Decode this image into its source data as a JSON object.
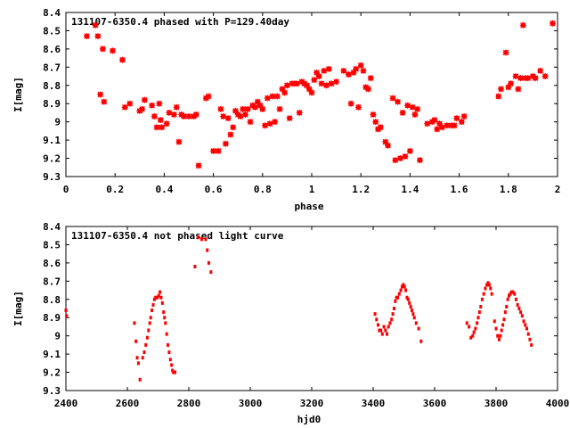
{
  "marker_color": "#ff0000",
  "chart_data": [
    {
      "type": "scatter",
      "title": "131107-6350.4 phased with P=129.40day",
      "xlabel": "phase",
      "ylabel": "I[mag]",
      "xlim": [
        0,
        2
      ],
      "ylim": [
        8.4,
        9.3
      ],
      "y_inverted": true,
      "grid": false,
      "marker": "star",
      "xticks": [
        "0",
        "0.2",
        "0.4",
        "0.6",
        "0.8",
        "1",
        "1.2",
        "1.4",
        "1.6",
        "1.8",
        "2"
      ],
      "yticks": [
        "8.4",
        "8.5",
        "8.6",
        "8.7",
        "8.8",
        "8.9",
        "9",
        "9.1",
        "9.2",
        "9.3"
      ],
      "points": [
        [
          0.085,
          8.53
        ],
        [
          0.12,
          8.47
        ],
        [
          0.13,
          8.53
        ],
        [
          0.14,
          8.85
        ],
        [
          0.15,
          8.6
        ],
        [
          0.155,
          8.89
        ],
        [
          0.19,
          8.61
        ],
        [
          0.23,
          8.66
        ],
        [
          0.24,
          8.92
        ],
        [
          0.26,
          8.9
        ],
        [
          0.3,
          8.94
        ],
        [
          0.31,
          8.93
        ],
        [
          0.32,
          8.88
        ],
        [
          0.35,
          8.91
        ],
        [
          0.36,
          8.97
        ],
        [
          0.37,
          9.03
        ],
        [
          0.38,
          8.9
        ],
        [
          0.385,
          8.99
        ],
        [
          0.39,
          9.03
        ],
        [
          0.41,
          9.01
        ],
        [
          0.42,
          8.95
        ],
        [
          0.44,
          8.96
        ],
        [
          0.45,
          8.92
        ],
        [
          0.46,
          9.11
        ],
        [
          0.47,
          8.96
        ],
        [
          0.48,
          8.97
        ],
        [
          0.5,
          8.97
        ],
        [
          0.52,
          8.97
        ],
        [
          0.53,
          8.96
        ],
        [
          0.54,
          9.24
        ],
        [
          0.57,
          8.87
        ],
        [
          0.58,
          8.86
        ],
        [
          0.6,
          9.16
        ],
        [
          0.62,
          9.16
        ],
        [
          0.63,
          8.93
        ],
        [
          0.64,
          8.97
        ],
        [
          0.65,
          9.12
        ],
        [
          0.66,
          8.98
        ],
        [
          0.67,
          9.07
        ],
        [
          0.68,
          9.03
        ],
        [
          0.69,
          8.94
        ],
        [
          0.7,
          8.96
        ],
        [
          0.71,
          8.97
        ],
        [
          0.72,
          8.93
        ],
        [
          0.73,
          8.96
        ],
        [
          0.74,
          8.93
        ],
        [
          0.75,
          9.0
        ],
        [
          0.76,
          8.91
        ],
        [
          0.77,
          8.92
        ],
        [
          0.78,
          8.89
        ],
        [
          0.79,
          8.91
        ],
        [
          0.8,
          8.93
        ],
        [
          0.81,
          9.02
        ],
        [
          0.82,
          8.87
        ],
        [
          0.83,
          9.01
        ],
        [
          0.84,
          8.86
        ],
        [
          0.85,
          9.0
        ],
        [
          0.86,
          8.86
        ],
        [
          0.87,
          8.93
        ],
        [
          0.88,
          8.82
        ],
        [
          0.89,
          8.84
        ],
        [
          0.9,
          8.8
        ],
        [
          0.91,
          8.98
        ],
        [
          0.92,
          8.79
        ],
        [
          0.93,
          8.79
        ],
        [
          0.94,
          8.79
        ],
        [
          0.95,
          8.95
        ],
        [
          0.96,
          8.78
        ],
        [
          0.97,
          8.79
        ],
        [
          0.98,
          8.8
        ],
        [
          0.99,
          8.82
        ],
        [
          1.0,
          8.84
        ],
        [
          1.01,
          8.77
        ],
        [
          1.02,
          8.73
        ],
        [
          1.03,
          8.75
        ],
        [
          1.04,
          8.79
        ],
        [
          1.05,
          8.72
        ],
        [
          1.06,
          8.8
        ],
        [
          1.07,
          8.71
        ],
        [
          1.08,
          8.79
        ],
        [
          1.1,
          8.78
        ],
        [
          1.13,
          8.72
        ],
        [
          1.15,
          8.74
        ],
        [
          1.16,
          8.9
        ],
        [
          1.17,
          8.73
        ],
        [
          1.18,
          8.71
        ],
        [
          1.19,
          8.92
        ],
        [
          1.2,
          8.69
        ],
        [
          1.21,
          8.72
        ],
        [
          1.22,
          8.81
        ],
        [
          1.23,
          8.82
        ],
        [
          1.24,
          8.76
        ],
        [
          1.25,
          8.96
        ],
        [
          1.26,
          9.0
        ],
        [
          1.27,
          9.04
        ],
        [
          1.28,
          9.03
        ],
        [
          1.3,
          9.11
        ],
        [
          1.31,
          9.13
        ],
        [
          1.33,
          8.87
        ],
        [
          1.34,
          9.21
        ],
        [
          1.35,
          8.89
        ],
        [
          1.36,
          9.2
        ],
        [
          1.37,
          8.95
        ],
        [
          1.38,
          9.19
        ],
        [
          1.39,
          8.91
        ],
        [
          1.4,
          9.16
        ],
        [
          1.41,
          8.92
        ],
        [
          1.42,
          8.96
        ],
        [
          1.43,
          8.93
        ],
        [
          1.44,
          9.21
        ],
        [
          1.47,
          9.01
        ],
        [
          1.49,
          9.0
        ],
        [
          1.5,
          8.99
        ],
        [
          1.51,
          9.04
        ],
        [
          1.52,
          9.01
        ],
        [
          1.53,
          9.03
        ],
        [
          1.55,
          9.02
        ],
        [
          1.57,
          9.02
        ],
        [
          1.58,
          9.02
        ],
        [
          1.59,
          8.98
        ],
        [
          1.61,
          9.0
        ],
        [
          1.62,
          8.97
        ],
        [
          1.76,
          8.86
        ],
        [
          1.77,
          8.82
        ],
        [
          1.79,
          8.62
        ],
        [
          1.8,
          8.81
        ],
        [
          1.81,
          8.79
        ],
        [
          1.83,
          8.75
        ],
        [
          1.84,
          8.82
        ],
        [
          1.85,
          8.76
        ],
        [
          1.86,
          8.47
        ],
        [
          1.87,
          8.76
        ],
        [
          1.88,
          8.76
        ],
        [
          1.9,
          8.75
        ],
        [
          1.91,
          8.76
        ],
        [
          1.93,
          8.72
        ],
        [
          1.95,
          8.75
        ],
        [
          1.98,
          8.46
        ]
      ]
    },
    {
      "type": "scatter",
      "title": "131107-6350.4 not phased light curve",
      "xlabel": "hjd0",
      "ylabel": "I[mag]",
      "xlim": [
        2400,
        4000
      ],
      "ylim": [
        8.4,
        9.3
      ],
      "y_inverted": true,
      "grid": false,
      "marker": "dot",
      "xticks": [
        "2400",
        "2600",
        "2800",
        "3000",
        "3200",
        "3400",
        "3600",
        "3800",
        "4000"
      ],
      "yticks": [
        "8.4",
        "8.5",
        "8.6",
        "8.7",
        "8.8",
        "8.9",
        "9",
        "9.1",
        "9.2",
        "9.3"
      ],
      "points": [
        [
          2400,
          8.86
        ],
        [
          2402,
          8.89
        ],
        [
          2623,
          8.93
        ],
        [
          2628,
          9.03
        ],
        [
          2632,
          9.12
        ],
        [
          2636,
          9.15
        ],
        [
          2641,
          9.24
        ],
        [
          2650,
          9.12
        ],
        [
          2655,
          9.09
        ],
        [
          2660,
          9.05
        ],
        [
          2665,
          9.01
        ],
        [
          2669,
          8.97
        ],
        [
          2673,
          8.93
        ],
        [
          2676,
          8.9
        ],
        [
          2680,
          8.86
        ],
        [
          2684,
          8.83
        ],
        [
          2688,
          8.8
        ],
        [
          2692,
          8.79
        ],
        [
          2697,
          8.79
        ],
        [
          2702,
          8.78
        ],
        [
          2706,
          8.76
        ],
        [
          2710,
          8.79
        ],
        [
          2714,
          8.82
        ],
        [
          2718,
          8.87
        ],
        [
          2721,
          8.9
        ],
        [
          2724,
          8.93
        ],
        [
          2728,
          8.99
        ],
        [
          2732,
          9.05
        ],
        [
          2736,
          9.09
        ],
        [
          2740,
          9.13
        ],
        [
          2744,
          9.16
        ],
        [
          2747,
          9.19
        ],
        [
          2750,
          9.2
        ],
        [
          2755,
          9.2
        ],
        [
          2820,
          8.62
        ],
        [
          2830,
          8.46
        ],
        [
          2842,
          8.47
        ],
        [
          2855,
          8.47
        ],
        [
          2860,
          8.53
        ],
        [
          2865,
          8.6
        ],
        [
          2872,
          8.65
        ],
        [
          3406,
          8.88
        ],
        [
          3411,
          8.91
        ],
        [
          3416,
          8.94
        ],
        [
          3420,
          8.97
        ],
        [
          3425,
          8.97
        ],
        [
          3430,
          8.99
        ],
        [
          3435,
          8.95
        ],
        [
          3440,
          8.97
        ],
        [
          3445,
          8.99
        ],
        [
          3450,
          8.95
        ],
        [
          3455,
          8.93
        ],
        [
          3460,
          8.91
        ],
        [
          3464,
          8.88
        ],
        [
          3468,
          8.85
        ],
        [
          3472,
          8.81
        ],
        [
          3476,
          8.79
        ],
        [
          3480,
          8.79
        ],
        [
          3485,
          8.77
        ],
        [
          3490,
          8.75
        ],
        [
          3494,
          8.73
        ],
        [
          3498,
          8.72
        ],
        [
          3502,
          8.73
        ],
        [
          3506,
          8.75
        ],
        [
          3510,
          8.79
        ],
        [
          3514,
          8.8
        ],
        [
          3518,
          8.82
        ],
        [
          3522,
          8.84
        ],
        [
          3526,
          8.86
        ],
        [
          3530,
          8.88
        ],
        [
          3534,
          8.9
        ],
        [
          3540,
          8.93
        ],
        [
          3548,
          8.96
        ],
        [
          3556,
          9.03
        ],
        [
          3705,
          8.93
        ],
        [
          3712,
          8.95
        ],
        [
          3718,
          9.01
        ],
        [
          3724,
          9.0
        ],
        [
          3728,
          8.98
        ],
        [
          3733,
          8.96
        ],
        [
          3738,
          8.93
        ],
        [
          3742,
          8.9
        ],
        [
          3746,
          8.87
        ],
        [
          3750,
          8.84
        ],
        [
          3755,
          8.8
        ],
        [
          3760,
          8.77
        ],
        [
          3765,
          8.74
        ],
        [
          3770,
          8.72
        ],
        [
          3774,
          8.71
        ],
        [
          3778,
          8.72
        ],
        [
          3782,
          8.74
        ],
        [
          3786,
          8.77
        ],
        [
          3795,
          8.92
        ],
        [
          3800,
          8.96
        ],
        [
          3805,
          9.0
        ],
        [
          3810,
          9.02
        ],
        [
          3814,
          9.0
        ],
        [
          3818,
          8.97
        ],
        [
          3822,
          8.94
        ],
        [
          3826,
          8.91
        ],
        [
          3830,
          8.87
        ],
        [
          3834,
          8.84
        ],
        [
          3838,
          8.8
        ],
        [
          3842,
          8.78
        ],
        [
          3846,
          8.77
        ],
        [
          3850,
          8.76
        ],
        [
          3855,
          8.76
        ],
        [
          3860,
          8.77
        ],
        [
          3865,
          8.8
        ],
        [
          3870,
          8.83
        ],
        [
          3875,
          8.85
        ],
        [
          3880,
          8.87
        ],
        [
          3885,
          8.89
        ],
        [
          3890,
          8.92
        ],
        [
          3895,
          8.94
        ],
        [
          3900,
          8.96
        ],
        [
          3905,
          8.99
        ],
        [
          3910,
          9.02
        ],
        [
          3915,
          9.05
        ]
      ]
    }
  ]
}
